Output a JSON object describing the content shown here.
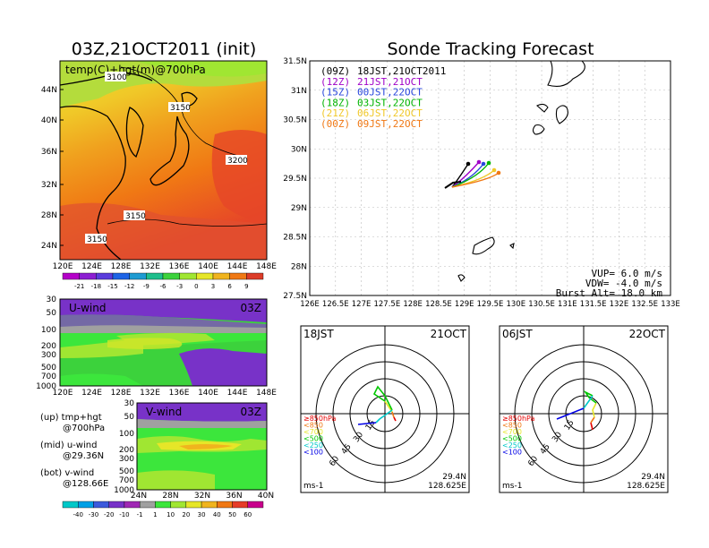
{
  "left_panel": {
    "title": "03Z,21OCT2011 (init)",
    "map_label": "temp(C)+hgt(m)@700hPa",
    "lat_labels": [
      "44N",
      "40N",
      "36N",
      "32N",
      "28N",
      "24N"
    ],
    "lon_labels": [
      "120E",
      "124E",
      "128E",
      "132E",
      "136E",
      "140E",
      "144E",
      "148E"
    ],
    "contour_labels": [
      "3100",
      "3150",
      "3200",
      "3150",
      "3150"
    ],
    "temp_colorbar": {
      "labels": [
        "-21",
        "-18",
        "-15",
        "-12",
        "-9",
        "-6",
        "-3",
        "0",
        "3",
        "6",
        "9"
      ],
      "colors": [
        "#b400c8",
        "#8c1ed2",
        "#5a3cdc",
        "#1e64e6",
        "#1e9bd2",
        "#1ebe8c",
        "#3cd23c",
        "#a0e632",
        "#e6e628",
        "#f0b41e",
        "#f07814",
        "#dc3c28"
      ]
    }
  },
  "uwind_panel": {
    "title": "U-wind",
    "time": "03Z",
    "p_labels": [
      "30",
      "50",
      "100",
      "200",
      "300",
      "500",
      "700",
      "1000"
    ],
    "lon_labels": [
      "120E",
      "124E",
      "128E",
      "132E",
      "136E",
      "140E",
      "144E",
      "148E"
    ]
  },
  "vwind_panel": {
    "title": "V-wind",
    "time": "03Z",
    "p_labels": [
      "30",
      "50",
      "100",
      "200",
      "300",
      "500",
      "700",
      "1000"
    ],
    "lat_labels": [
      "24N",
      "28N",
      "32N",
      "36N",
      "40N"
    ],
    "wind_colorbar": {
      "labels": [
        "-40",
        "-30",
        "-20",
        "-10",
        "-1",
        "1",
        "10",
        "20",
        "30",
        "40",
        "50",
        "60"
      ],
      "colors": [
        "#00c8c8",
        "#00a0e6",
        "#3c5adc",
        "#7832c8",
        "#a028b4",
        "#a0a0a0",
        "#3ce63c",
        "#a0e632",
        "#e6e628",
        "#f0b41e",
        "#f07814",
        "#e63c28",
        "#c8008c"
      ]
    }
  },
  "legend_notes": [
    {
      "label": "(up) tmp+hgt",
      "detail": "@700hPa"
    },
    {
      "label": "(mid) u-wind",
      "detail": "@29.36N"
    },
    {
      "label": "(bot) v-wind",
      "detail": "@128.66E"
    }
  ],
  "tracking": {
    "title": "Sonde Tracking Forecast",
    "lat_labels": [
      "31.5N",
      "31N",
      "30.5N",
      "30N",
      "29.5N",
      "29N",
      "28.5N",
      "28N",
      "27.5N"
    ],
    "lon_labels": [
      "126E",
      "126.5E",
      "127E",
      "127.5E",
      "128E",
      "128.5E",
      "129E",
      "129.5E",
      "130E",
      "130.5E",
      "131E",
      "131.5E",
      "132E",
      "132.5E",
      "133E"
    ],
    "series": [
      {
        "code": "(09Z)",
        "label": "18JST,21OCT2011",
        "color": "#000000"
      },
      {
        "code": "(12Z)",
        "label": "21JST,21OCT",
        "color": "#a000c8"
      },
      {
        "code": "(15Z)",
        "label": "00JST,22OCT",
        "color": "#2846dc"
      },
      {
        "code": "(18Z)",
        "label": "03JST,22OCT",
        "color": "#00b400"
      },
      {
        "code": "(21Z)",
        "label": "06JST,22OCT",
        "color": "#f0c828"
      },
      {
        "code": "(00Z)",
        "label": "09JST,22OCT",
        "color": "#f07814"
      }
    ],
    "vup": "VUP=  6.0 m/s",
    "vdw": "VDW= -4.0 m/s",
    "burst": "Burst Alt= 18.0 km"
  },
  "hodo_left": {
    "time": "18JST",
    "date": "21OCT",
    "ring_labels": [
      "15",
      "30",
      "45",
      "60"
    ],
    "levels": [
      "≥850hPa",
      "<850",
      "<700",
      "<500",
      "<250",
      "<100"
    ],
    "unit": "ms-1",
    "lat": "29.4N",
    "lon": "128.625E"
  },
  "hodo_right": {
    "time": "06JST",
    "date": "22OCT",
    "ring_labels": [
      "15",
      "30",
      "45",
      "60"
    ],
    "levels": [
      "≥850hPa",
      "<850",
      "<700",
      "<500",
      "<250",
      "<100"
    ],
    "unit": "ms-1",
    "lat": "29.4N",
    "lon": "128.625E"
  },
  "level_colors": [
    "#e60000",
    "#f07814",
    "#e6e628",
    "#00c800",
    "#00c8c8",
    "#0000e6"
  ]
}
